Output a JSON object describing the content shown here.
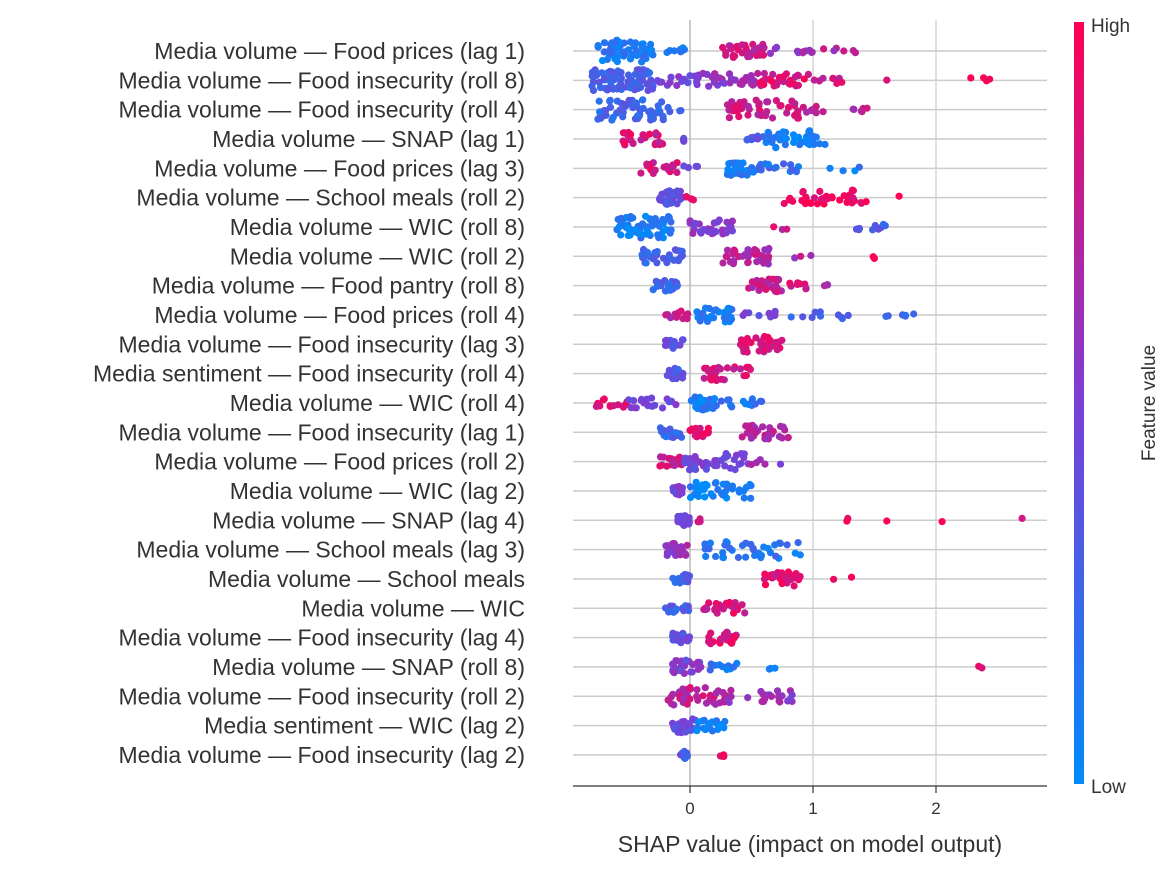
{
  "chart_data": {
    "type": "scatter",
    "subtype": "shap-beeswarm",
    "xlabel": "SHAP value (impact on model output)",
    "xlim": [
      -0.95,
      2.9
    ],
    "xticks": [
      0,
      1,
      2
    ],
    "xtick_labels": [
      "0",
      "1",
      "2"
    ],
    "colorbar": {
      "title": "Feature value",
      "high_label": "High",
      "low_label": "Low",
      "low_color": "#008bfb",
      "high_color": "#ff0052"
    },
    "colors": {
      "low": "#008bfb",
      "mid": "#7b3fd6",
      "high": "#ff0052",
      "grid": "#cccccc",
      "zero_line": "#bbbbbb"
    },
    "features": [
      {
        "name": "Media volume — Food prices (lag 1)",
        "clusters": [
          [
            -0.75,
            -0.3,
            0.1,
            60
          ],
          [
            -0.25,
            0.0,
            0.15,
            8
          ],
          [
            0.25,
            0.6,
            0.8,
            30
          ],
          [
            0.6,
            1.0,
            0.6,
            12
          ],
          [
            1.05,
            1.35,
            0.7,
            6
          ]
        ]
      },
      {
        "name": "Media volume — Food insecurity (roll 8)",
        "clusters": [
          [
            -0.8,
            -0.3,
            0.3,
            80
          ],
          [
            -0.3,
            0.1,
            0.45,
            20
          ],
          [
            0.1,
            0.55,
            0.6,
            30
          ],
          [
            0.55,
            1.0,
            0.85,
            30
          ],
          [
            1.0,
            1.25,
            0.8,
            8
          ],
          [
            1.6,
            1.7,
            0.8,
            1
          ],
          [
            2.25,
            2.45,
            1.0,
            4
          ]
        ]
      },
      {
        "name": "Media volume — Food insecurity (roll 4)",
        "clusters": [
          [
            -0.75,
            -0.2,
            0.25,
            55
          ],
          [
            -0.2,
            0.0,
            0.3,
            4
          ],
          [
            0.3,
            0.9,
            0.8,
            45
          ],
          [
            0.9,
            1.1,
            0.8,
            8
          ],
          [
            1.3,
            1.45,
            0.75,
            6
          ]
        ]
      },
      {
        "name": "Media volume — SNAP (lag 1)",
        "clusters": [
          [
            -0.55,
            -0.2,
            0.85,
            28
          ],
          [
            -0.15,
            -0.05,
            0.4,
            3
          ],
          [
            0.45,
            0.6,
            0.3,
            10
          ],
          [
            0.6,
            1.1,
            0.05,
            40
          ]
        ]
      },
      {
        "name": "Media volume — Food prices (lag 3)",
        "clusters": [
          [
            -0.4,
            -0.1,
            0.85,
            22
          ],
          [
            -0.1,
            0.1,
            0.5,
            4
          ],
          [
            0.3,
            0.5,
            0.1,
            30
          ],
          [
            0.5,
            0.9,
            0.2,
            18
          ],
          [
            1.05,
            1.4,
            0.1,
            4
          ]
        ]
      },
      {
        "name": "Media volume — School meals (roll 2)",
        "clusters": [
          [
            -0.25,
            -0.05,
            0.4,
            30
          ],
          [
            -0.05,
            0.05,
            0.8,
            4
          ],
          [
            0.75,
            1.45,
            0.95,
            35
          ],
          [
            1.7,
            1.75,
            1.0,
            1
          ]
        ]
      },
      {
        "name": "Media volume — WIC (roll 8)",
        "clusters": [
          [
            -0.6,
            -0.15,
            0.1,
            60
          ],
          [
            0.0,
            0.35,
            0.55,
            30
          ],
          [
            0.65,
            0.8,
            0.8,
            3
          ],
          [
            1.35,
            1.6,
            0.3,
            10
          ]
        ]
      },
      {
        "name": "Media volume — WIC (roll 2)",
        "clusters": [
          [
            -0.4,
            -0.05,
            0.25,
            30
          ],
          [
            0.25,
            0.65,
            0.7,
            35
          ],
          [
            0.8,
            1.0,
            0.7,
            3
          ],
          [
            1.45,
            1.55,
            0.95,
            2
          ]
        ]
      },
      {
        "name": "Media volume — Food pantry (roll 8)",
        "clusters": [
          [
            -0.3,
            -0.1,
            0.25,
            20
          ],
          [
            0.45,
            0.75,
            0.75,
            30
          ],
          [
            0.8,
            0.95,
            0.85,
            8
          ],
          [
            1.05,
            1.15,
            0.7,
            3
          ]
        ]
      },
      {
        "name": "Media volume — Food prices (roll 4)",
        "clusters": [
          [
            -0.2,
            0.0,
            0.75,
            12
          ],
          [
            0.05,
            0.35,
            0.1,
            30
          ],
          [
            0.4,
            0.7,
            0.4,
            10
          ],
          [
            0.8,
            1.3,
            0.3,
            10
          ],
          [
            1.55,
            1.85,
            0.25,
            6
          ]
        ]
      },
      {
        "name": "Media volume — Food insecurity (lag 3)",
        "clusters": [
          [
            -0.2,
            -0.05,
            0.4,
            15
          ],
          [
            0.4,
            0.75,
            0.85,
            35
          ]
        ]
      },
      {
        "name": "Media sentiment — Food insecurity (roll 4)",
        "clusters": [
          [
            -0.2,
            -0.05,
            0.35,
            20
          ],
          [
            0.1,
            0.5,
            0.85,
            30
          ]
        ]
      },
      {
        "name": "Media volume — WIC (roll 4)",
        "clusters": [
          [
            -0.8,
            -0.5,
            0.9,
            15
          ],
          [
            -0.5,
            -0.1,
            0.5,
            20
          ],
          [
            0.0,
            0.2,
            0.1,
            30
          ],
          [
            0.2,
            0.65,
            0.15,
            15
          ]
        ]
      },
      {
        "name": "Media volume — Food insecurity (lag 1)",
        "clusters": [
          [
            -0.25,
            -0.05,
            0.25,
            20
          ],
          [
            0.0,
            0.15,
            0.85,
            15
          ],
          [
            0.4,
            0.8,
            0.7,
            30
          ]
        ]
      },
      {
        "name": "Media volume — Food prices (roll 2)",
        "clusters": [
          [
            -0.25,
            -0.05,
            0.8,
            20
          ],
          [
            -0.05,
            0.45,
            0.45,
            40
          ],
          [
            0.45,
            0.75,
            0.6,
            6
          ]
        ]
      },
      {
        "name": "Media volume — WIC (lag 2)",
        "clusters": [
          [
            -0.15,
            -0.05,
            0.5,
            15
          ],
          [
            0.0,
            0.5,
            0.05,
            40
          ]
        ]
      },
      {
        "name": "Media volume — SNAP (lag 4)",
        "clusters": [
          [
            -0.1,
            0.0,
            0.4,
            20
          ],
          [
            0.05,
            0.1,
            0.85,
            3
          ],
          [
            1.25,
            1.3,
            0.95,
            2
          ],
          [
            1.6,
            1.6,
            0.95,
            1
          ],
          [
            2.05,
            2.05,
            0.95,
            1
          ],
          [
            2.7,
            2.7,
            0.95,
            1
          ]
        ]
      },
      {
        "name": "Media volume — School meals (lag 3)",
        "clusters": [
          [
            -0.2,
            0.0,
            0.6,
            25
          ],
          [
            0.1,
            0.95,
            0.15,
            40
          ]
        ]
      },
      {
        "name": "Media volume — School meals",
        "clusters": [
          [
            -0.15,
            0.0,
            0.3,
            15
          ],
          [
            0.6,
            0.9,
            0.9,
            30
          ],
          [
            1.15,
            1.35,
            0.95,
            2
          ]
        ]
      },
      {
        "name": "Media volume — WIC",
        "clusters": [
          [
            -0.2,
            0.0,
            0.3,
            15
          ],
          [
            0.1,
            0.45,
            0.85,
            25
          ]
        ]
      },
      {
        "name": "Media volume — Food insecurity (lag 4)",
        "clusters": [
          [
            -0.15,
            0.0,
            0.4,
            20
          ],
          [
            0.15,
            0.4,
            0.85,
            25
          ]
        ]
      },
      {
        "name": "Media volume — SNAP (roll 8)",
        "clusters": [
          [
            -0.15,
            0.1,
            0.5,
            30
          ],
          [
            0.15,
            0.4,
            0.15,
            12
          ],
          [
            0.6,
            0.7,
            0.1,
            3
          ],
          [
            2.2,
            2.45,
            0.95,
            2
          ]
        ]
      },
      {
        "name": "Media volume — Food insecurity (roll 2)",
        "clusters": [
          [
            -0.2,
            0.3,
            0.75,
            40
          ],
          [
            0.3,
            0.85,
            0.6,
            25
          ]
        ]
      },
      {
        "name": "Media sentiment — WIC (lag 2)",
        "clusters": [
          [
            -0.15,
            0.05,
            0.45,
            30
          ],
          [
            0.05,
            0.3,
            0.05,
            20
          ]
        ]
      },
      {
        "name": "Media volume — Food insecurity (lag 2)",
        "clusters": [
          [
            -0.08,
            0.0,
            0.3,
            12
          ],
          [
            0.22,
            0.28,
            0.95,
            6
          ]
        ]
      }
    ]
  }
}
